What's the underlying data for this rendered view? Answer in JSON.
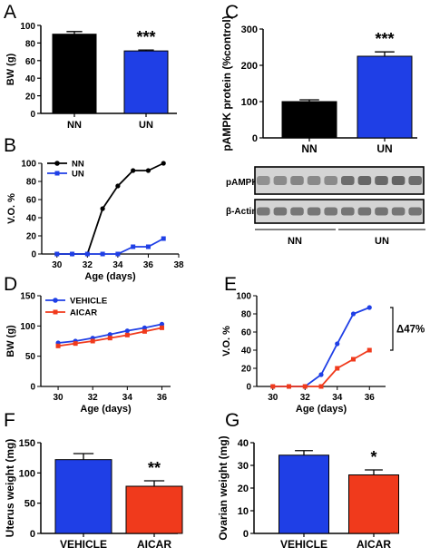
{
  "panels": {
    "A": {
      "letter": "A",
      "ylabel": "BW (g)",
      "yticks": [
        "0",
        "20",
        "40",
        "60",
        "80",
        "100"
      ],
      "categories": [
        "NN",
        "UN"
      ],
      "significance": "***"
    },
    "B": {
      "letter": "B",
      "ylabel": "V.O. %",
      "xlabel": "Age (days)",
      "yticks": [
        "0",
        "20",
        "40",
        "60",
        "80",
        "100"
      ],
      "xticks": [
        "30",
        "32",
        "34",
        "36",
        "38"
      ],
      "legend": [
        "NN",
        "UN"
      ]
    },
    "C": {
      "letter": "C",
      "ylabel": "pAMPK protein (%control)",
      "yticks": [
        "0",
        "100",
        "200",
        "300"
      ],
      "categories": [
        "NN",
        "UN"
      ],
      "significance": "***",
      "blot_labels": [
        "pAMPK",
        "β-Actin"
      ],
      "group_labels": [
        "NN",
        "UN"
      ]
    },
    "D": {
      "letter": "D",
      "ylabel": "BW (g)",
      "xlabel": "Age (days)",
      "yticks": [
        "0",
        "50",
        "100",
        "150"
      ],
      "xticks": [
        "30",
        "32",
        "34",
        "36"
      ],
      "legend": [
        "VEHICLE",
        "AICAR"
      ]
    },
    "E": {
      "letter": "E",
      "ylabel": "V.O. %",
      "xlabel": "Age (days)",
      "yticks": [
        "0",
        "20",
        "40",
        "60",
        "80",
        "100"
      ],
      "xticks": [
        "30",
        "32",
        "34",
        "36"
      ],
      "annotation": "Δ47%"
    },
    "F": {
      "letter": "F",
      "ylabel": "Uterus weight (mg)",
      "yticks": [
        "0",
        "50",
        "100",
        "150"
      ],
      "categories": [
        "VEHICLE",
        "AICAR"
      ],
      "significance": "**"
    },
    "G": {
      "letter": "G",
      "ylabel": "Ovarian weight (mg)",
      "yticks": [
        "0",
        "10",
        "20",
        "30",
        "40"
      ],
      "categories": [
        "VEHICLE",
        "AICAR"
      ],
      "significance": "*"
    }
  },
  "colors": {
    "black": "#000000",
    "blue": "#1f3fe6",
    "red": "#f03a1c",
    "blot_bg": "#d4d4d4",
    "band": "#5a5a5a"
  },
  "chart_data": [
    {
      "id": "A",
      "type": "bar",
      "categories": [
        "NN",
        "UN"
      ],
      "values": [
        90,
        71
      ],
      "errors": [
        3,
        1
      ],
      "colors": [
        "#000000",
        "#1f3fe6"
      ],
      "ylim": [
        0,
        100
      ],
      "ylabel": "BW (g)"
    },
    {
      "id": "B",
      "type": "line",
      "xlim": [
        29,
        38
      ],
      "ylim": [
        0,
        100
      ],
      "xlabel": "Age (days)",
      "ylabel": "V.O. %",
      "legend_position": "top-left",
      "series": [
        {
          "name": "NN",
          "color": "#000000",
          "marker": "circle",
          "x": [
            30,
            31,
            32,
            33,
            34,
            35,
            36,
            37
          ],
          "y": [
            0,
            0,
            0,
            50,
            75,
            92,
            92,
            100
          ]
        },
        {
          "name": "UN",
          "color": "#1f3fe6",
          "marker": "square",
          "x": [
            30,
            31,
            32,
            33,
            34,
            35,
            36,
            37
          ],
          "y": [
            0,
            0,
            0,
            0,
            0,
            8,
            8,
            17
          ]
        }
      ]
    },
    {
      "id": "C",
      "type": "bar",
      "categories": [
        "NN",
        "UN"
      ],
      "values": [
        100,
        225
      ],
      "errors": [
        5,
        12
      ],
      "colors": [
        "#000000",
        "#1f3fe6"
      ],
      "ylim": [
        0,
        300
      ],
      "ylabel": "pAMPK protein (%control)"
    },
    {
      "id": "D",
      "type": "line",
      "xlim": [
        29,
        36.5
      ],
      "ylim": [
        0,
        150
      ],
      "xlabel": "Age (days)",
      "ylabel": "BW (g)",
      "legend_position": "top-left",
      "series": [
        {
          "name": "VEHICLE",
          "color": "#1f3fe6",
          "marker": "circle",
          "x": [
            30,
            31,
            32,
            33,
            34,
            35,
            36
          ],
          "y": [
            72,
            75,
            80,
            86,
            92,
            97,
            103
          ]
        },
        {
          "name": "AICAR",
          "color": "#f03a1c",
          "marker": "square",
          "x": [
            30,
            31,
            32,
            33,
            34,
            35,
            36
          ],
          "y": [
            67,
            71,
            75,
            80,
            85,
            91,
            97
          ]
        }
      ]
    },
    {
      "id": "E",
      "type": "line",
      "xlim": [
        29,
        37
      ],
      "ylim": [
        0,
        100
      ],
      "xlabel": "Age (days)",
      "ylabel": "V.O. %",
      "series": [
        {
          "name": "",
          "color": "#1f3fe6",
          "marker": "circle",
          "x": [
            30,
            31,
            32,
            33,
            34,
            35,
            36
          ],
          "y": [
            0,
            0,
            0,
            13,
            47,
            80,
            87
          ]
        },
        {
          "name": "",
          "color": "#f03a1c",
          "marker": "square",
          "x": [
            30,
            31,
            32,
            33,
            34,
            35,
            36
          ],
          "y": [
            0,
            0,
            0,
            0,
            20,
            30,
            40
          ]
        }
      ]
    },
    {
      "id": "F",
      "type": "bar",
      "categories": [
        "VEHICLE",
        "AICAR"
      ],
      "values": [
        122,
        78
      ],
      "errors": [
        10,
        9
      ],
      "colors": [
        "#1f3fe6",
        "#f03a1c"
      ],
      "ylim": [
        0,
        150
      ],
      "ylabel": "Uterus weight (mg)"
    },
    {
      "id": "G",
      "type": "bar",
      "categories": [
        "VEHICLE",
        "AICAR"
      ],
      "values": [
        34.5,
        25.8
      ],
      "errors": [
        2,
        2.2
      ],
      "colors": [
        "#1f3fe6",
        "#f03a1c"
      ],
      "ylim": [
        0,
        40
      ],
      "ylabel": "Ovarian weight (mg)"
    }
  ]
}
